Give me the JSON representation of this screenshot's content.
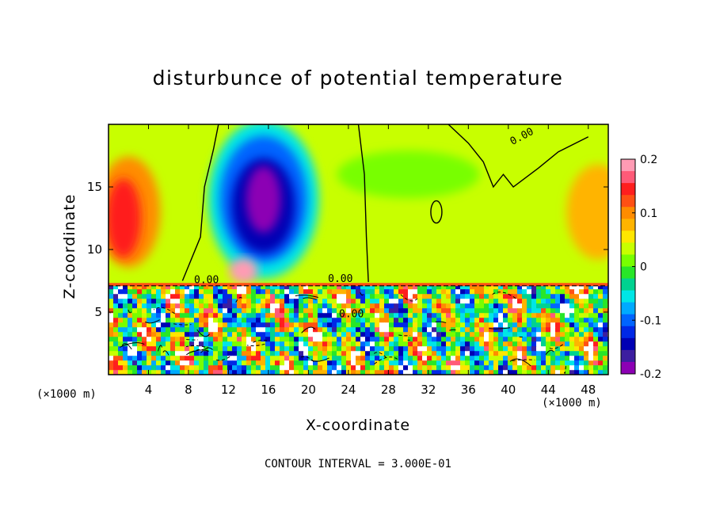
{
  "chart_data": {
    "type": "heatmap",
    "title": "disturbunce of potential temperature",
    "xlabel": "X-coordinate",
    "ylabel": "Z-coordinate",
    "x_unit_label": "(×1000 m)",
    "x_unit_label_right": "(×1000 m)",
    "xlim": [
      0,
      50
    ],
    "ylim": [
      0,
      20
    ],
    "x_ticks": [
      4,
      8,
      12,
      16,
      20,
      24,
      28,
      32,
      36,
      40,
      44,
      48
    ],
    "y_ticks": [
      5,
      10,
      15
    ],
    "colorbar": {
      "range": [
        -0.2,
        0.2
      ],
      "tick_labels": [
        "0.2",
        "0.1",
        "0",
        "-0.1",
        "-0.2"
      ],
      "tick_values": [
        0.2,
        0.1,
        0,
        -0.1,
        -0.2
      ],
      "colors": [
        "#ff9bb4",
        "#ff5a78",
        "#ff1e1e",
        "#ff5014",
        "#ff8c00",
        "#ffb400",
        "#ffe600",
        "#c8ff00",
        "#78ff00",
        "#28e628",
        "#00d290",
        "#00e6e6",
        "#00aaff",
        "#0064ff",
        "#0028e6",
        "#0000b4",
        "#3c1ea0",
        "#8c00b4"
      ]
    },
    "contour_labels": [
      "0.00",
      "0.00",
      "0.00",
      "0.00"
    ],
    "footer": "CONTOUR INTERVAL = 3.000E-01",
    "features": [
      {
        "name": "cold anomaly",
        "x": 15.5,
        "z": 14,
        "value": -0.18
      },
      {
        "name": "warm anomaly",
        "x": 1.5,
        "z": 12.5,
        "value": 0.14
      },
      {
        "name": "warm anomaly",
        "x": 49,
        "z": 12,
        "value": 0.08
      },
      {
        "name": "warm mound",
        "x": 13.5,
        "z": 8.8,
        "value": 0.2
      }
    ],
    "inversion_height": 7.2
  }
}
